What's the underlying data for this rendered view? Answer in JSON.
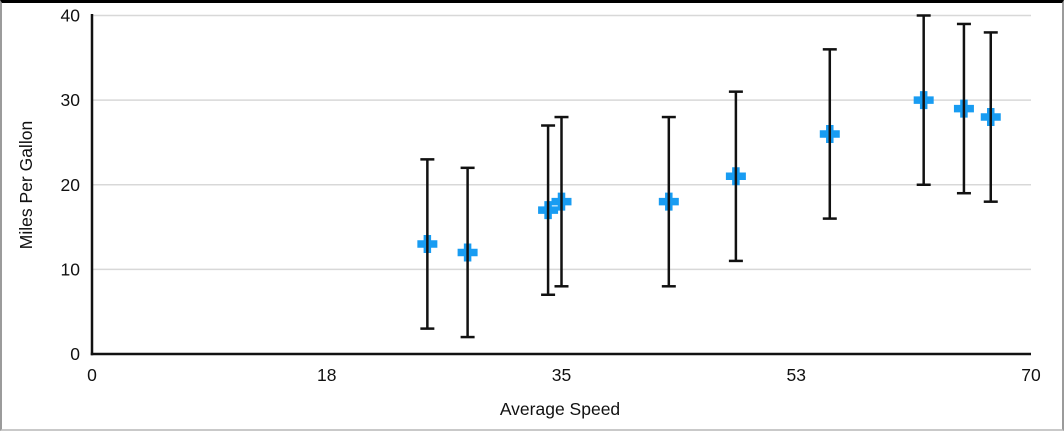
{
  "frame": {
    "background": "#FFFFFF",
    "border_top_color": "#000000",
    "border_side_color": "#9B9B9B",
    "border_bottom_color": "#C9C9C9"
  },
  "chart_data": {
    "type": "scatter",
    "title": "",
    "xlabel": "Average Speed",
    "ylabel": "Miles Per Gallon",
    "xlim": [
      0,
      70
    ],
    "ylim": [
      0,
      40
    ],
    "x_ticks": {
      "positions": [
        0,
        17.5,
        35,
        52.5,
        70
      ],
      "labels": [
        "0",
        "18",
        "35",
        "53",
        "70"
      ]
    },
    "y_ticks": {
      "positions": [
        0,
        10,
        20,
        30,
        40
      ],
      "labels": [
        "0",
        "10",
        "20",
        "30",
        "40"
      ]
    },
    "grid": "horizontal-only",
    "legend": "none",
    "colors": {
      "axis": "#111111",
      "gridline": "#d8d8d8",
      "text": "#111111",
      "accent": "#189cf2"
    },
    "series": [
      {
        "name": "Miles Per Gallon",
        "marker": "plus",
        "marker_color": "#189cf2",
        "error_bar": {
          "type": "absolute",
          "value": 10,
          "color": "#111111"
        },
        "points": [
          {
            "x": 25,
            "y": 13
          },
          {
            "x": 28,
            "y": 12
          },
          {
            "x": 34,
            "y": 17
          },
          {
            "x": 35,
            "y": 18
          },
          {
            "x": 43,
            "y": 18
          },
          {
            "x": 48,
            "y": 21
          },
          {
            "x": 55,
            "y": 26
          },
          {
            "x": 62,
            "y": 30
          },
          {
            "x": 65,
            "y": 29
          },
          {
            "x": 67,
            "y": 28
          }
        ]
      }
    ]
  }
}
